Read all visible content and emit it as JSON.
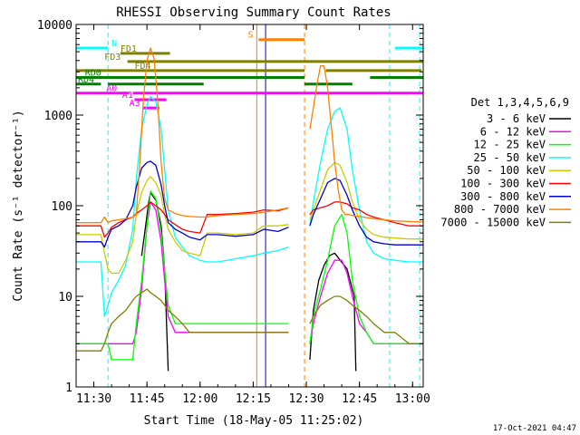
{
  "chart_data": {
    "type": "line",
    "title": "RHESSI Observing Summary Count Rates",
    "xlabel": "Start Time (18-May-05 11:25:02)",
    "ylabel": "Count Rate (s⁻¹ detector⁻¹)",
    "yscale": "log",
    "x_unit": "minutes after 11:25:02",
    "xlim": [
      0,
      98
    ],
    "ylim": [
      1,
      10000
    ],
    "x_ticks": [
      {
        "value": 5,
        "label": "11:30"
      },
      {
        "value": 20,
        "label": "11:45"
      },
      {
        "value": 35,
        "label": "12:00"
      },
      {
        "value": 50,
        "label": "12:15"
      },
      {
        "value": 65,
        "label": "12:30"
      },
      {
        "value": 80,
        "label": "12:45"
      },
      {
        "value": 95,
        "label": "13:00"
      }
    ],
    "y_ticks": [
      {
        "value": 1,
        "label": "1"
      },
      {
        "value": 10,
        "label": "10"
      },
      {
        "value": 100,
        "label": "100"
      },
      {
        "value": 1000,
        "label": "1000"
      },
      {
        "value": 10000,
        "label": "10000"
      }
    ],
    "legend": {
      "title": "Det 1,3,4,5,6,9",
      "placement": "right"
    },
    "series": [
      {
        "name": "3 - 6 keV",
        "color": "#000000",
        "x": [
          0,
          9,
          9.5,
          17.5,
          18.5,
          19.5,
          20.5,
          21,
          22.5,
          24,
          25,
          26,
          64.5,
          66,
          67,
          68.5,
          70,
          71.5,
          73,
          76.5,
          78.5,
          79,
          80.5,
          82,
          83.5,
          85.5,
          87,
          98
        ],
        "y": [
          null,
          null,
          null,
          null,
          28,
          55,
          110,
          140,
          115,
          60,
          20,
          1.5,
          null,
          2,
          7,
          15,
          22,
          28,
          30,
          20,
          10,
          1.5,
          null,
          null,
          null,
          null,
          null,
          null
        ]
      },
      {
        "name": "6 - 12 keV",
        "color": "#ff00ff",
        "x": [
          0,
          9,
          10,
          16,
          17,
          18.5,
          20,
          21,
          22.5,
          24,
          25,
          26,
          28,
          30,
          32,
          35,
          40,
          45,
          50,
          53,
          57,
          60,
          64.5,
          66,
          67,
          69,
          71,
          73,
          75,
          76.5,
          78,
          80,
          82,
          84,
          87,
          90,
          94,
          98
        ],
        "y": [
          3,
          3,
          3,
          3,
          4,
          12,
          60,
          110,
          90,
          40,
          15,
          6,
          4,
          4,
          4,
          4,
          4,
          4,
          4,
          4,
          4,
          4,
          null,
          3,
          5,
          10,
          18,
          25,
          25,
          18,
          10,
          5,
          4,
          3,
          3,
          3,
          3,
          3
        ]
      },
      {
        "name": "12 - 25 keV",
        "color": "#00ff00",
        "x": [
          0,
          5,
          9,
          10,
          16,
          17,
          18.5,
          20,
          21,
          22.5,
          24,
          25,
          26,
          28,
          30,
          35,
          40,
          45,
          50,
          53,
          57,
          60,
          64.5,
          66,
          67,
          69,
          71,
          73,
          75,
          76.5,
          78,
          80,
          82,
          84,
          87,
          90,
          94,
          98
        ],
        "y": [
          3,
          3,
          3,
          2,
          2,
          5,
          15,
          60,
          145,
          120,
          50,
          20,
          8,
          5,
          5,
          5,
          5,
          5,
          5,
          5,
          5,
          5,
          null,
          3,
          6,
          12,
          25,
          60,
          80,
          50,
          15,
          6,
          4,
          3,
          3,
          3,
          3,
          3
        ]
      },
      {
        "name": "25 - 50 keV",
        "color": "#00ffff",
        "x": [
          0,
          5,
          7,
          8,
          9,
          10,
          12,
          14,
          16,
          17,
          18.5,
          20,
          21,
          22.5,
          24,
          25,
          26,
          28,
          30,
          32,
          35,
          37,
          40,
          45,
          50,
          53,
          57,
          60,
          64.5,
          66,
          67,
          69,
          71,
          73,
          74.5,
          76.5,
          78,
          80,
          82,
          84,
          87,
          90,
          94,
          98
        ],
        "y": [
          24,
          24,
          24,
          6,
          8,
          11,
          15,
          22,
          55,
          200,
          700,
          1300,
          1600,
          1400,
          700,
          250,
          90,
          45,
          35,
          28,
          25,
          24,
          24,
          26,
          28,
          30,
          32,
          35,
          null,
          60,
          110,
          300,
          700,
          1100,
          1200,
          700,
          250,
          90,
          40,
          30,
          26,
          25,
          24,
          24
        ]
      },
      {
        "name": "50 - 100 keV",
        "color": "#cccc00",
        "x": [
          0,
          5,
          7,
          8,
          9,
          10,
          12,
          14,
          16,
          17,
          18.5,
          20,
          21,
          22.5,
          24,
          25,
          26,
          28,
          30,
          32,
          35,
          37,
          40,
          45,
          50,
          53,
          57,
          60,
          64.5,
          66,
          67,
          69,
          71,
          73,
          74.5,
          76.5,
          78,
          80,
          82,
          84,
          87,
          90,
          94,
          98
        ],
        "y": [
          48,
          48,
          48,
          30,
          20,
          18,
          18,
          25,
          40,
          80,
          140,
          190,
          210,
          180,
          130,
          80,
          55,
          40,
          32,
          30,
          28,
          50,
          50,
          48,
          50,
          60,
          60,
          62,
          null,
          70,
          90,
          150,
          250,
          300,
          280,
          180,
          110,
          70,
          55,
          48,
          45,
          44,
          43,
          43
        ]
      },
      {
        "name": "100 - 300 keV",
        "color": "#ff0000",
        "x": [
          0,
          5,
          7,
          8,
          9,
          10,
          12,
          14,
          16,
          17,
          18.5,
          20,
          21,
          22.5,
          24,
          25,
          26,
          28,
          30,
          32,
          35,
          37,
          40,
          45,
          50,
          53,
          57,
          60,
          64.5,
          66,
          67,
          69,
          71,
          73,
          74.5,
          76.5,
          78,
          80,
          82,
          84,
          87,
          90,
          94,
          98
        ],
        "y": [
          60,
          60,
          60,
          45,
          50,
          58,
          65,
          70,
          75,
          82,
          90,
          100,
          110,
          100,
          90,
          80,
          70,
          62,
          55,
          52,
          50,
          80,
          80,
          82,
          85,
          90,
          88,
          95,
          null,
          80,
          90,
          95,
          100,
          110,
          110,
          105,
          95,
          90,
          80,
          75,
          70,
          65,
          60,
          60
        ]
      },
      {
        "name": "300 - 800 keV",
        "color": "#0000cc",
        "x": [
          0,
          5,
          7,
          8,
          9,
          10,
          12,
          14,
          16,
          17,
          18.5,
          20,
          21,
          22.5,
          24,
          25,
          26,
          28,
          30,
          32,
          35,
          37,
          40,
          45,
          50,
          53,
          57,
          60,
          64.5,
          66,
          67,
          69,
          71,
          73,
          74.5,
          76.5,
          78,
          80,
          82,
          84,
          87,
          90,
          94,
          98
        ],
        "y": [
          40,
          40,
          40,
          35,
          45,
          55,
          60,
          70,
          100,
          160,
          260,
          300,
          310,
          280,
          170,
          100,
          65,
          55,
          50,
          45,
          42,
          48,
          48,
          46,
          48,
          55,
          52,
          58,
          null,
          60,
          80,
          120,
          180,
          200,
          190,
          130,
          90,
          60,
          45,
          40,
          38,
          37,
          37,
          37
        ]
      },
      {
        "name": "800 - 7000 keV",
        "color": "#ff8000",
        "x": [
          0,
          5,
          7,
          8,
          9,
          10,
          12,
          14,
          16,
          17,
          18,
          19,
          20,
          21,
          22,
          23,
          24,
          25,
          26,
          28,
          30,
          32,
          35,
          37,
          40,
          45,
          50,
          53,
          57,
          60,
          64.5,
          66,
          67,
          68,
          69,
          70,
          71,
          72,
          73,
          74,
          75,
          76,
          77,
          78,
          80,
          82,
          84,
          87,
          90,
          94,
          98
        ],
        "y": [
          65,
          65,
          65,
          75,
          65,
          68,
          70,
          72,
          75,
          80,
          300,
          1500,
          4000,
          5500,
          4200,
          1500,
          300,
          120,
          90,
          82,
          78,
          76,
          75,
          75,
          78,
          80,
          82,
          85,
          90,
          95,
          null,
          700,
          1200,
          2200,
          3500,
          3500,
          2000,
          800,
          300,
          150,
          90,
          80,
          80,
          78,
          76,
          74,
          72,
          70,
          68,
          67,
          66
        ]
      },
      {
        "name": "7000 - 15000 keV",
        "color": "#808000",
        "x": [
          0,
          5,
          7,
          8,
          9,
          10,
          12,
          14,
          16,
          17,
          18.5,
          20,
          21,
          22.5,
          24,
          25,
          26,
          28,
          30,
          32,
          35,
          37,
          40,
          45,
          50,
          53,
          57,
          60,
          64.5,
          66,
          67,
          69,
          71,
          73,
          74.5,
          76.5,
          78,
          80,
          82,
          84,
          87,
          90,
          94,
          98
        ],
        "y": [
          2.5,
          2.5,
          2.5,
          3,
          4,
          5,
          6,
          7,
          9,
          10,
          11,
          12,
          11,
          10,
          9,
          8,
          7,
          6,
          5,
          4,
          4,
          4,
          4,
          4,
          4,
          4,
          4,
          4,
          null,
          5,
          6,
          8,
          9,
          10,
          10,
          9,
          8,
          7,
          6,
          5,
          4,
          4,
          3,
          3
        ]
      }
    ],
    "attenuator_states": [
      {
        "label": "N",
        "color": "#00ffff",
        "value": 5500,
        "segments": [
          [
            0,
            9
          ],
          [
            90,
            98
          ]
        ],
        "label_x": 10
      },
      {
        "label": "FD1",
        "color": "#808000",
        "value": 4800,
        "segments": [
          [
            12.5,
            26.5
          ]
        ],
        "label_x": 12.5
      },
      {
        "label": "S",
        "color": "#ff8000",
        "value": 6800,
        "segments": [
          [
            51.5,
            64.5
          ]
        ],
        "label_x": 48.5
      },
      {
        "label": "FD3",
        "color": "#808000",
        "value": 3900,
        "segments": [
          [
            14.5,
            98
          ]
        ],
        "label_x": 8
      },
      {
        "label": "FD4",
        "color": "#808000",
        "value": 3100,
        "segments": [
          [
            0,
            64.5
          ],
          [
            70.5,
            97.5
          ]
        ],
        "label_x": 16.5
      },
      {
        "label": "RD0",
        "color": "#008000",
        "value": 2600,
        "segments": [
          [
            0,
            64.5
          ],
          [
            83,
            98
          ]
        ],
        "label_x": 2.5
      },
      {
        "label": "RD4",
        "color": "#008000",
        "value": 2200,
        "segments": [
          [
            0,
            7
          ],
          [
            9,
            36
          ],
          [
            64.5,
            78
          ]
        ],
        "label_x": 0.5
      },
      {
        "label": "A0",
        "color": "#ff00ff",
        "value": 1750,
        "segments": [
          [
            0,
            15
          ],
          [
            16,
            98
          ]
        ],
        "label_x": 8.5
      },
      {
        "label": "A1",
        "color": "#ff00ff",
        "value": 1480,
        "segments": [
          [
            16.5,
            25.5
          ]
        ],
        "label_x": 13
      },
      {
        "label": "A3",
        "color": "#ff00ff",
        "value": 1200,
        "segments": [
          [
            19,
            23.5
          ]
        ],
        "label_x": 15
      }
    ],
    "vertical_markers": [
      {
        "x": 9,
        "color": "#00ffff",
        "style": "dashed"
      },
      {
        "x": 88.5,
        "color": "#00ffff",
        "style": "dashed"
      },
      {
        "x": 97,
        "color": "#00ffff",
        "style": "dashed"
      },
      {
        "x": 64.5,
        "color": "#ff8000",
        "style": "dashed"
      },
      {
        "x": 51,
        "color": "#ff8000",
        "style": "solid"
      },
      {
        "x": 53.5,
        "color": "#0000cc",
        "style": "solid"
      }
    ]
  },
  "footer": {
    "timestamp": "17-Oct-2021 04:47"
  }
}
